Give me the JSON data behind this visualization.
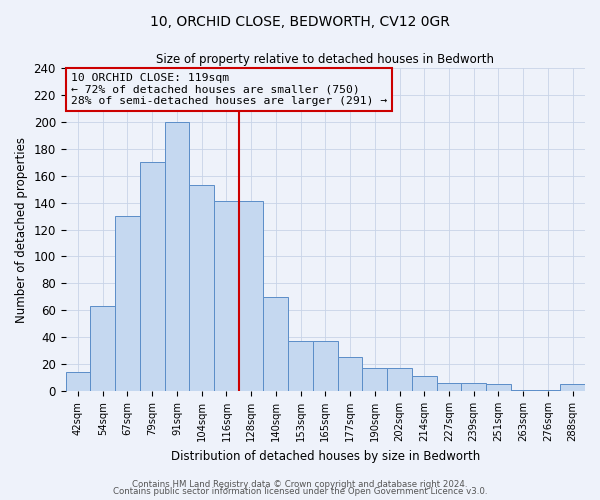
{
  "title": "10, ORCHID CLOSE, BEDWORTH, CV12 0GR",
  "subtitle": "Size of property relative to detached houses in Bedworth",
  "xlabel": "Distribution of detached houses by size in Bedworth",
  "ylabel": "Number of detached properties",
  "bar_labels": [
    "42sqm",
    "54sqm",
    "67sqm",
    "79sqm",
    "91sqm",
    "104sqm",
    "116sqm",
    "128sqm",
    "140sqm",
    "153sqm",
    "165sqm",
    "177sqm",
    "190sqm",
    "202sqm",
    "214sqm",
    "227sqm",
    "239sqm",
    "251sqm",
    "263sqm",
    "276sqm",
    "288sqm"
  ],
  "bar_heights": [
    14,
    63,
    130,
    170,
    200,
    153,
    141,
    141,
    70,
    37,
    37,
    25,
    17,
    17,
    11,
    6,
    6,
    5,
    1,
    1,
    5
  ],
  "bar_color": "#c5d8f0",
  "bar_edge_color": "#5b8dc8",
  "vline_x_index": 6,
  "vline_color": "#cc0000",
  "annotation_title": "10 ORCHID CLOSE: 119sqm",
  "annotation_line1": "← 72% of detached houses are smaller (750)",
  "annotation_line2": "28% of semi-detached houses are larger (291) →",
  "annotation_box_edge_color": "#cc0000",
  "ylim": [
    0,
    240
  ],
  "yticks": [
    0,
    20,
    40,
    60,
    80,
    100,
    120,
    140,
    160,
    180,
    200,
    220,
    240
  ],
  "footer1": "Contains HM Land Registry data © Crown copyright and database right 2024.",
  "footer2": "Contains public sector information licensed under the Open Government Licence v3.0.",
  "bg_color": "#eef2fa",
  "grid_color": "#c8d4e8"
}
